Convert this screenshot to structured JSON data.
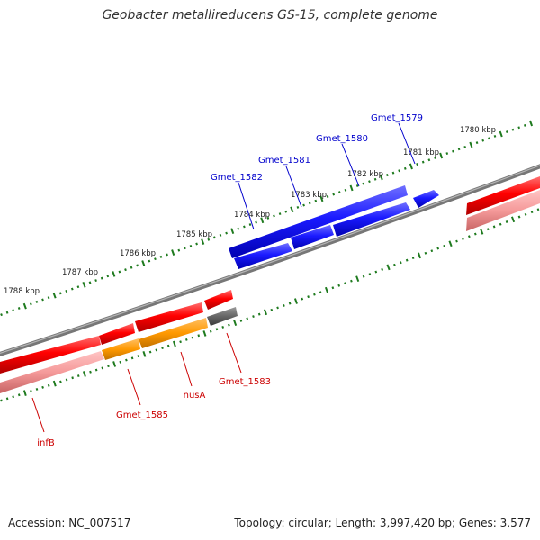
{
  "title": "Geobacter metallireducens GS-15, complete genome",
  "accession": "Accession: NC_007517",
  "stats": "Topology: circular; Length: 3,997,420 bp; Genes: 3,577",
  "colors": {
    "forward_gene": "#1a1aff",
    "reverse_gene": "#ff0000",
    "reverse_gene_light": "#ff9999",
    "operon": "#ff9900",
    "pseudo": "#666666",
    "backbone": "#888888",
    "tick": "#1e7a1e",
    "forward_label": "#0000cc",
    "reverse_label": "#cc0000"
  },
  "ticks": [
    {
      "label": "1780 kbp"
    },
    {
      "label": "1781 kbp"
    },
    {
      "label": "1782 kbp"
    },
    {
      "label": "1783 kbp"
    },
    {
      "label": "1784 kbp"
    },
    {
      "label": "1785 kbp"
    },
    {
      "label": "1786 kbp"
    },
    {
      "label": "1787 kbp"
    },
    {
      "label": "1788 kbp"
    }
  ],
  "forward_genes": [
    {
      "label": "Gmet_1579"
    },
    {
      "label": "Gmet_1580"
    },
    {
      "label": "Gmet_1581"
    },
    {
      "label": "Gmet_1582"
    }
  ],
  "reverse_genes": [
    {
      "label": "Gmet_1583"
    },
    {
      "label": "nusA"
    },
    {
      "label": "Gmet_1585"
    },
    {
      "label": "infB"
    }
  ]
}
